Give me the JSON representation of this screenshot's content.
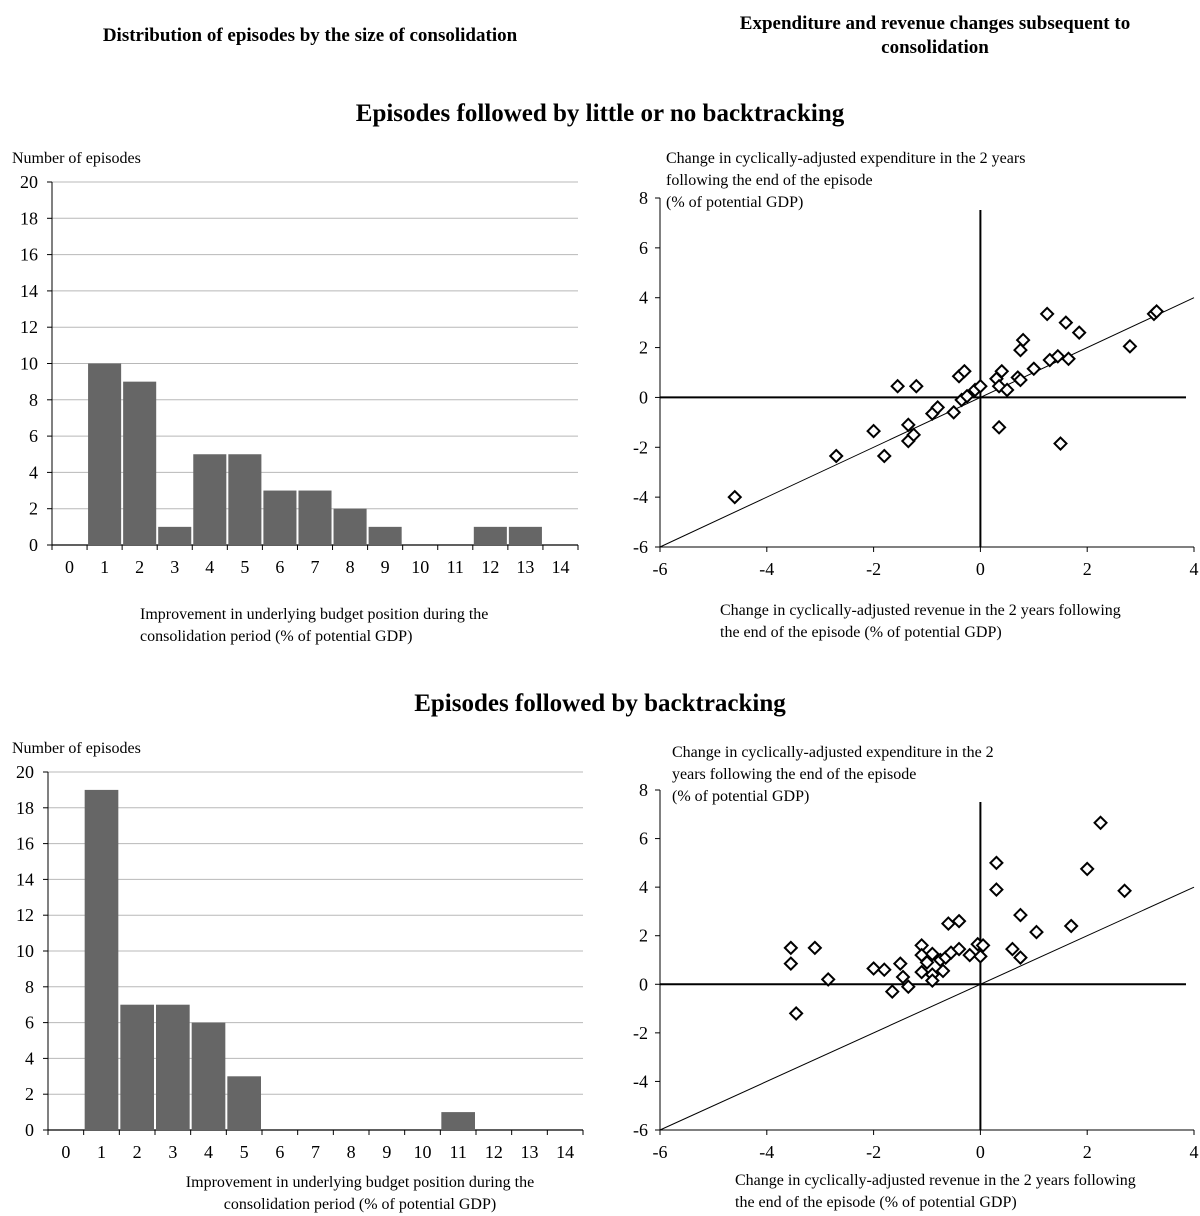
{
  "headers": {
    "left": "Distribution of episodes by the size of consolidation",
    "right": "Expenditure and revenue changes subsequent to consolidation"
  },
  "sections": {
    "top_title": "Episodes followed by little or no backtracking",
    "bottom_title": "Episodes followed by backtracking"
  },
  "chart_data": [
    {
      "type": "bar",
      "section": "Episodes followed by little or no backtracking",
      "ylabel": "Number of episodes",
      "xlabel": "Improvement in underlying budget position during the consolidation period (% of potential GDP)",
      "categories": [
        "0",
        "1",
        "2",
        "3",
        "4",
        "5",
        "6",
        "7",
        "8",
        "9",
        "10",
        "11",
        "12",
        "13",
        "14"
      ],
      "values": [
        0,
        10,
        9,
        1,
        5,
        5,
        3,
        3,
        2,
        1,
        0,
        0,
        1,
        1,
        0
      ],
      "ylim": [
        0,
        20
      ],
      "yticks": [
        0,
        2,
        4,
        6,
        8,
        10,
        12,
        14,
        16,
        18,
        20
      ],
      "grid": true,
      "bar_color": "#666666"
    },
    {
      "type": "scatter",
      "section": "Episodes followed by little or no backtracking",
      "ylabel": "Change in cyclically-adjusted expenditure in the 2 years following the end of the episode (% of potential GDP)",
      "xlabel": "Change in cyclically-adjusted revenue in the 2 years following the end of the episode (% of potential GDP)",
      "xlim": [
        -6,
        4
      ],
      "ylim": [
        -6,
        8
      ],
      "xticks": [
        -6,
        -4,
        -2,
        0,
        2,
        4
      ],
      "yticks": [
        -6,
        -4,
        -2,
        0,
        2,
        4,
        6,
        8
      ],
      "reference_line": "y = x",
      "points": [
        [
          -4.6,
          -4.0
        ],
        [
          -2.7,
          -2.35
        ],
        [
          -2.0,
          -1.35
        ],
        [
          -1.8,
          -2.35
        ],
        [
          -1.55,
          0.45
        ],
        [
          -1.2,
          0.45
        ],
        [
          -1.35,
          -1.1
        ],
        [
          -1.35,
          -1.75
        ],
        [
          -1.25,
          -1.5
        ],
        [
          -0.9,
          -0.65
        ],
        [
          -0.8,
          -0.4
        ],
        [
          -0.5,
          -0.6
        ],
        [
          -0.4,
          0.85
        ],
        [
          -0.3,
          1.05
        ],
        [
          -0.35,
          -0.1
        ],
        [
          -0.25,
          0.05
        ],
        [
          -0.1,
          0.3
        ],
        [
          0.0,
          0.45
        ],
        [
          0.3,
          0.75
        ],
        [
          0.35,
          0.45
        ],
        [
          0.4,
          1.05
        ],
        [
          0.5,
          0.3
        ],
        [
          0.7,
          0.8
        ],
        [
          0.75,
          0.7
        ],
        [
          0.75,
          1.9
        ],
        [
          0.8,
          2.3
        ],
        [
          1.0,
          1.15
        ],
        [
          1.25,
          3.35
        ],
        [
          1.3,
          1.5
        ],
        [
          1.45,
          1.65
        ],
        [
          1.5,
          -1.85
        ],
        [
          1.6,
          3.0
        ],
        [
          1.65,
          1.55
        ],
        [
          1.85,
          2.6
        ],
        [
          2.8,
          2.05
        ],
        [
          3.25,
          3.35
        ],
        [
          3.3,
          3.45
        ],
        [
          0.35,
          -1.2
        ]
      ]
    },
    {
      "type": "bar",
      "section": "Episodes followed by backtracking",
      "ylabel": "Number of episodes",
      "xlabel": "Improvement in underlying budget position during the consolidation period (% of potential GDP)",
      "categories": [
        "0",
        "1",
        "2",
        "3",
        "4",
        "5",
        "6",
        "7",
        "8",
        "9",
        "10",
        "11",
        "12",
        "13",
        "14"
      ],
      "values": [
        0,
        19,
        7,
        7,
        6,
        3,
        0,
        0,
        0,
        0,
        0,
        1,
        0,
        0,
        0
      ],
      "ylim": [
        0,
        20
      ],
      "yticks": [
        0,
        2,
        4,
        6,
        8,
        10,
        12,
        14,
        16,
        18,
        20
      ],
      "grid": true,
      "bar_color": "#666666"
    },
    {
      "type": "scatter",
      "section": "Episodes followed by backtracking",
      "ylabel": "Change in cyclically-adjusted expenditure in the 2 years following the end of the episode (% of potential GDP)",
      "xlabel": "Change in cyclically-adjusted revenue in the 2 years following the end of the episode (% of potential GDP)",
      "xlim": [
        -6,
        4
      ],
      "ylim": [
        -6,
        8
      ],
      "xticks": [
        -6,
        -4,
        -2,
        0,
        2,
        4
      ],
      "yticks": [
        -6,
        -4,
        -2,
        0,
        2,
        4,
        6,
        8
      ],
      "reference_line": "y = x",
      "points": [
        [
          -3.55,
          1.5
        ],
        [
          -3.55,
          0.85
        ],
        [
          -3.45,
          -1.2
        ],
        [
          -3.1,
          1.5
        ],
        [
          -2.85,
          0.2
        ],
        [
          -2.0,
          0.65
        ],
        [
          -1.8,
          0.6
        ],
        [
          -1.65,
          -0.3
        ],
        [
          -1.5,
          0.85
        ],
        [
          -1.45,
          0.3
        ],
        [
          -1.35,
          -0.1
        ],
        [
          -1.1,
          1.6
        ],
        [
          -1.1,
          1.2
        ],
        [
          -1.1,
          0.5
        ],
        [
          -1.0,
          0.9
        ],
        [
          -0.9,
          1.25
        ],
        [
          -0.9,
          0.4
        ],
        [
          -0.9,
          0.15
        ],
        [
          -0.75,
          1.0
        ],
        [
          -0.7,
          0.55
        ],
        [
          -0.65,
          1.1
        ],
        [
          -0.6,
          2.5
        ],
        [
          -0.55,
          1.3
        ],
        [
          -0.4,
          2.6
        ],
        [
          -0.4,
          1.45
        ],
        [
          -0.2,
          1.2
        ],
        [
          -0.05,
          1.65
        ],
        [
          0.0,
          1.15
        ],
        [
          0.05,
          1.6
        ],
        [
          0.3,
          5.0
        ],
        [
          0.3,
          3.9
        ],
        [
          0.6,
          1.45
        ],
        [
          0.75,
          2.85
        ],
        [
          0.75,
          1.1
        ],
        [
          1.05,
          2.15
        ],
        [
          1.7,
          2.4
        ],
        [
          2.0,
          4.75
        ],
        [
          2.25,
          6.65
        ],
        [
          2.7,
          3.85
        ]
      ]
    }
  ],
  "labels": {
    "top_bar_ylabel": "Number of episodes",
    "top_bar_xlabel_1": "Improvement in underlying budget position during the",
    "top_bar_xlabel_2": "consolidation period (% of potential GDP)",
    "top_sc_ylabel_1": "Change in cyclically-adjusted expenditure in the 2 years",
    "top_sc_ylabel_2": "following the end of the episode",
    "top_sc_ylabel_3": "(% of potential GDP)",
    "top_sc_xlabel_1": "Change in cyclically-adjusted revenue in the 2 years following",
    "top_sc_xlabel_2": "the end of the episode (% of potential GDP)",
    "bot_bar_ylabel": "Number of episodes",
    "bot_bar_xlabel_1": "Improvement in underlying budget position during the",
    "bot_bar_xlabel_2": "consolidation period (% of potential GDP)",
    "bot_sc_ylabel_1": "Change in cyclically-adjusted expenditure in the 2",
    "bot_sc_ylabel_2": "years following the end of the episode",
    "bot_sc_ylabel_3": "(% of potential GDP)",
    "bot_sc_xlabel_1": "Change in cyclically-adjusted revenue in the 2 years following",
    "bot_sc_xlabel_2": "the end of the episode (% of potential GDP)"
  }
}
